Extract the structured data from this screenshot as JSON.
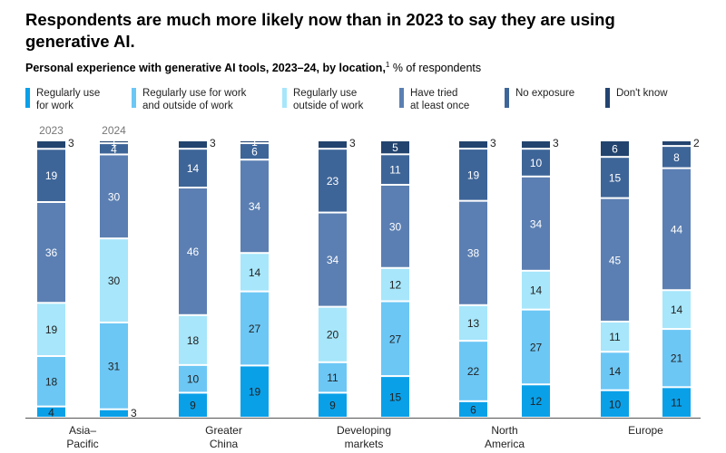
{
  "title": "Respondents are much more likely now than in 2023 to say they are using generative AI.",
  "subtitle": {
    "main": "Personal experience with generative AI tools, 2023–24, by location,",
    "footnote_mark": "1",
    "unit": " % of respondents"
  },
  "legend": [
    {
      "label": "Regularly use\nfor work",
      "color": "#0aa0e8"
    },
    {
      "label": "Regularly use for work\nand outside of work",
      "color": "#6cc7f5"
    },
    {
      "label": "Regularly use\noutside of work",
      "color": "#a7e6fb"
    },
    {
      "label": "Have tried\nat least once",
      "color": "#5b7fb2"
    },
    {
      "label": "No exposure",
      "color": "#3e6598"
    },
    {
      "label": "Don't know",
      "color": "#23446f"
    }
  ],
  "chart_data": {
    "type": "bar",
    "stacked": true,
    "year_labels": [
      "2023",
      "2024"
    ],
    "categories": [
      "Asia–\nPacific",
      "Greater\nChina",
      "Developing\nmarkets",
      "North\nAmerica",
      "Europe"
    ],
    "series": [
      {
        "name": "Regularly use for work",
        "color": "#0aa0e8",
        "values_2023": [
          4,
          9,
          9,
          6,
          10
        ],
        "values_2024": [
          3,
          19,
          15,
          12,
          11
        ]
      },
      {
        "name": "Regularly use for work and outside of work",
        "color": "#6cc7f5",
        "values_2023": [
          18,
          10,
          11,
          22,
          14
        ],
        "values_2024": [
          31,
          27,
          27,
          27,
          21
        ]
      },
      {
        "name": "Regularly use outside of work",
        "color": "#a7e6fb",
        "values_2023": [
          19,
          18,
          20,
          13,
          11
        ],
        "values_2024": [
          30,
          14,
          12,
          14,
          14
        ]
      },
      {
        "name": "Have tried at least once",
        "color": "#5b7fb2",
        "values_2023": [
          36,
          46,
          34,
          38,
          45
        ],
        "values_2024": [
          30,
          34,
          30,
          34,
          44
        ]
      },
      {
        "name": "No exposure",
        "color": "#3e6598",
        "values_2023": [
          19,
          14,
          23,
          19,
          15
        ],
        "values_2024": [
          4,
          6,
          11,
          10,
          8
        ]
      },
      {
        "name": "Don't know",
        "color": "#23446f",
        "values_2023": [
          3,
          3,
          3,
          3,
          6
        ],
        "values_2024": [
          1,
          1,
          5,
          3,
          2
        ]
      }
    ],
    "ylim": [
      0,
      100
    ]
  }
}
